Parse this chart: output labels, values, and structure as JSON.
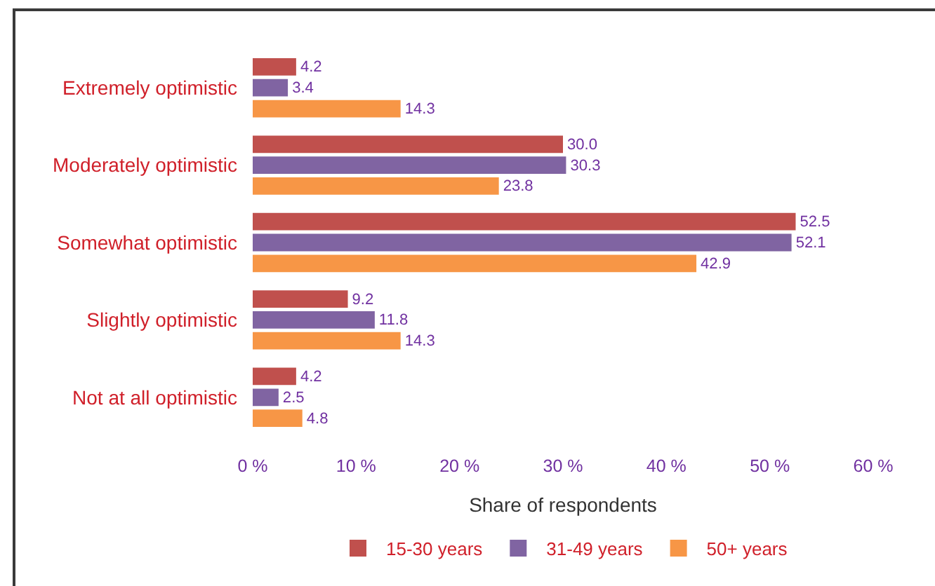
{
  "chart_data": {
    "type": "bar",
    "orientation": "horizontal",
    "xlabel": "Share of respondents",
    "categories": [
      "Extremely optimistic",
      "Moderately optimistic",
      "Somewhat optimistic",
      "Slightly optimistic",
      "Not at all optimistic"
    ],
    "series": [
      {
        "name": "15-30 years",
        "color": "#c0504d",
        "values": [
          4.2,
          30.0,
          52.5,
          9.2,
          4.2
        ],
        "value_labels": [
          "4.2",
          "30.0",
          "52.5",
          "9.2",
          "4.2"
        ]
      },
      {
        "name": "31-49 years",
        "color": "#8064a2",
        "values": [
          3.4,
          30.3,
          52.1,
          11.8,
          2.5
        ],
        "value_labels": [
          "3.4",
          "30.3",
          "52.1",
          "11.8",
          "2.5"
        ]
      },
      {
        "name": "50+ years",
        "color": "#f79646",
        "values": [
          14.3,
          23.8,
          42.9,
          14.3,
          4.8
        ],
        "value_labels": [
          "14.3",
          "23.8",
          "42.9",
          "14.3",
          "4.8"
        ]
      }
    ],
    "xlim": [
      0,
      60
    ],
    "xticks": [
      {
        "value": 0,
        "label": "0 %"
      },
      {
        "value": 10,
        "label": "10 %"
      },
      {
        "value": 20,
        "label": "20 %"
      },
      {
        "value": 30,
        "label": "30 %"
      },
      {
        "value": 40,
        "label": "40 %"
      },
      {
        "value": 50,
        "label": "50 %"
      },
      {
        "value": 60,
        "label": "60 %"
      }
    ],
    "legend": "bottom"
  }
}
